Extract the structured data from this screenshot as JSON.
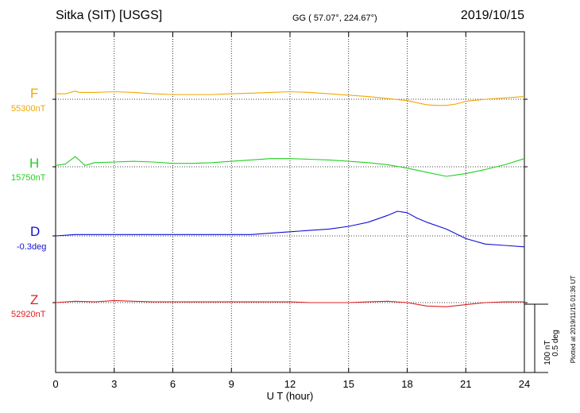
{
  "header": {
    "station": "Sitka (SIT)  [USGS]",
    "coords": "GG ( 57.07°, 224.67°)",
    "date": "2019/10/15"
  },
  "scale": {
    "nt": "100 nT",
    "deg": "0.5 deg"
  },
  "plotted": "Plotted at 2019/11/15 01:36 UT",
  "chart_data": {
    "type": "line",
    "xlabel": "U T (hour)",
    "xlim": [
      0,
      24
    ],
    "x_ticks": [
      "0",
      "3",
      "6",
      "9",
      "12",
      "15",
      "18",
      "21",
      "24"
    ],
    "grid": "dotted vertical lines every 3 hours; dotted baseline per component",
    "legend": "left of plot, one label per trace",
    "series": [
      {
        "name": "F",
        "baseline": "55300nT",
        "unit": "nT",
        "color": "#f0a800",
        "x": [
          0,
          0.5,
          1,
          1.2,
          1.5,
          2,
          3,
          4,
          5,
          6,
          7,
          8,
          9,
          10,
          11,
          12,
          13,
          14,
          15,
          16,
          17,
          18,
          19,
          19.5,
          20,
          20.5,
          21,
          22,
          23,
          24
        ],
        "y": [
          8,
          8,
          12,
          10,
          10,
          10,
          11,
          10,
          8,
          7,
          7,
          7,
          8,
          9,
          10,
          11,
          10,
          8,
          6,
          4,
          1,
          -2,
          -8,
          -9,
          -9,
          -7,
          -3,
          0,
          2,
          4
        ]
      },
      {
        "name": "H",
        "baseline": "15750nT",
        "unit": "nT",
        "color": "#22d020",
        "x": [
          0,
          0.5,
          1,
          1.2,
          1.5,
          2,
          3,
          4,
          5,
          6,
          7,
          8,
          9,
          10,
          11,
          12,
          13,
          14,
          15,
          16,
          17,
          18,
          19,
          20,
          20.5,
          21,
          22,
          23,
          24
        ],
        "y": [
          2,
          4,
          15,
          10,
          2,
          6,
          7,
          8,
          7,
          5,
          5,
          6,
          8,
          10,
          12,
          12,
          11,
          10,
          8,
          6,
          3,
          -2,
          -8,
          -14,
          -12,
          -10,
          -4,
          3,
          12
        ]
      },
      {
        "name": "D",
        "baseline": "-0.3deg",
        "unit": "deg",
        "color": "#1010d8",
        "x": [
          0,
          1,
          2,
          3,
          4,
          5,
          6,
          7,
          8,
          9,
          10,
          11,
          12,
          13,
          14,
          15,
          16,
          17,
          17.5,
          18,
          18.5,
          19,
          20,
          21,
          22,
          23,
          24
        ],
        "y": [
          0,
          0.01,
          0.01,
          0.01,
          0.01,
          0.01,
          0.01,
          0.01,
          0.01,
          0.01,
          0.01,
          0.02,
          0.03,
          0.04,
          0.05,
          0.07,
          0.1,
          0.15,
          0.18,
          0.17,
          0.13,
          0.1,
          0.05,
          -0.02,
          -0.06,
          -0.07,
          -0.08
        ]
      },
      {
        "name": "Z",
        "baseline": "52920nT",
        "unit": "nT",
        "color": "#e02020",
        "x": [
          0,
          1,
          2,
          3,
          4,
          5,
          6,
          7,
          8,
          9,
          10,
          11,
          12,
          13,
          14,
          15,
          16,
          17,
          18,
          19,
          20,
          21,
          22,
          23,
          24
        ],
        "y": [
          0,
          2,
          1,
          3,
          2,
          1,
          1,
          1,
          1,
          1,
          1,
          1,
          1,
          0,
          0,
          0,
          1,
          2,
          0,
          -5,
          -6,
          -3,
          0,
          1,
          1
        ]
      }
    ]
  }
}
